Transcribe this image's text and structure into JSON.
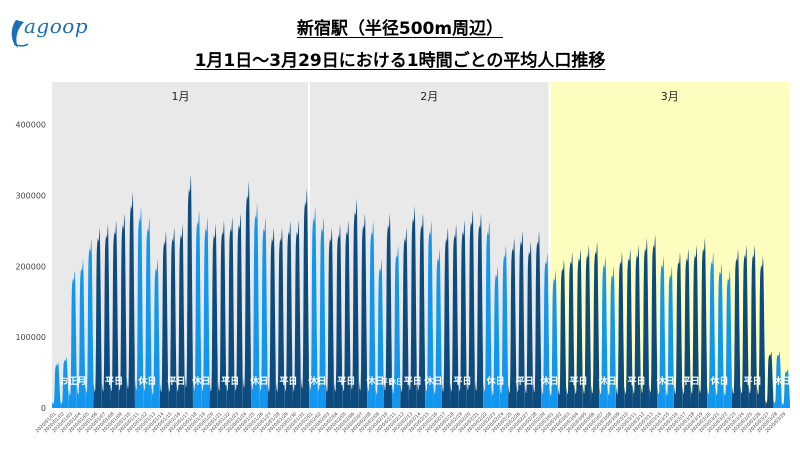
{
  "logo": {
    "text": "agoop",
    "accent_color": "#1a6fb6"
  },
  "header": {
    "title_line1": "新宿駅（半径500m周辺）",
    "title_line2": "1月1日〜3月29日における1時間ごとの平均人口推移"
  },
  "colors": {
    "weekday": "#0d4a7d",
    "holiday": "#1396ee",
    "panel_jan_feb": "#e9e9e9",
    "panel_mar": "#fdfdbf",
    "divider": "#ffffff"
  },
  "chart_data": {
    "type": "area",
    "title": "新宿駅（半径500m周辺） 1月1日〜3月29日における1時間ごとの平均人口推移",
    "xlabel": "",
    "ylabel": "",
    "ylim": [
      0,
      460000
    ],
    "yticks": [
      0,
      100000,
      200000,
      300000,
      400000
    ],
    "ytick_labels": [
      "0",
      "100000",
      "200000",
      "300000",
      "400000"
    ],
    "grid": false,
    "months": [
      "1月",
      "2月",
      "3月"
    ],
    "x": [
      "2020/01/01",
      "2020/01/02",
      "2020/01/03",
      "2020/01/04",
      "2020/01/05",
      "2020/01/06",
      "2020/01/07",
      "2020/01/08",
      "2020/01/09",
      "2020/01/10",
      "2020/01/11",
      "2020/01/12",
      "2020/01/13",
      "2020/01/14",
      "2020/01/15",
      "2020/01/16",
      "2020/01/17",
      "2020/01/18",
      "2020/01/19",
      "2020/01/20",
      "2020/01/21",
      "2020/01/22",
      "2020/01/23",
      "2020/01/24",
      "2020/01/25",
      "2020/01/26",
      "2020/01/27",
      "2020/01/28",
      "2020/01/29",
      "2020/01/30",
      "2020/01/31",
      "2020/02/01",
      "2020/02/02",
      "2020/02/03",
      "2020/02/04",
      "2020/02/05",
      "2020/02/06",
      "2020/02/07",
      "2020/02/08",
      "2020/02/09",
      "2020/02/10",
      "2020/02/11",
      "2020/02/12",
      "2020/02/13",
      "2020/02/14",
      "2020/02/15",
      "2020/02/16",
      "2020/02/17",
      "2020/02/18",
      "2020/02/19",
      "2020/02/20",
      "2020/02/21",
      "2020/02/22",
      "2020/02/23",
      "2020/02/24",
      "2020/02/25",
      "2020/02/26",
      "2020/02/27",
      "2020/02/28",
      "2020/02/29",
      "2020/03/01",
      "2020/03/02",
      "2020/03/03",
      "2020/03/04",
      "2020/03/05",
      "2020/03/06",
      "2020/03/07",
      "2020/03/08",
      "2020/03/09",
      "2020/03/10",
      "2020/03/11",
      "2020/03/12",
      "2020/03/13",
      "2020/03/14",
      "2020/03/15",
      "2020/03/16",
      "2020/03/17",
      "2020/03/18",
      "2020/03/19",
      "2020/03/20",
      "2020/03/21",
      "2020/03/22",
      "2020/03/23",
      "2020/03/24",
      "2020/03/25",
      "2020/03/26",
      "2020/03/27",
      "2020/03/28",
      "2020/03/29"
    ],
    "daily_peak": [
      65000,
      72000,
      195000,
      210000,
      240000,
      255000,
      260000,
      265000,
      275000,
      305000,
      285000,
      270000,
      210000,
      250000,
      255000,
      260000,
      330000,
      280000,
      270000,
      260000,
      265000,
      270000,
      275000,
      320000,
      290000,
      270000,
      255000,
      255000,
      265000,
      265000,
      310000,
      285000,
      270000,
      255000,
      260000,
      265000,
      295000,
      275000,
      265000,
      210000,
      275000,
      230000,
      255000,
      285000,
      275000,
      265000,
      225000,
      255000,
      260000,
      265000,
      280000,
      275000,
      265000,
      200000,
      230000,
      240000,
      250000,
      235000,
      250000,
      220000,
      195000,
      210000,
      220000,
      225000,
      230000,
      235000,
      215000,
      200000,
      220000,
      225000,
      230000,
      240000,
      245000,
      215000,
      200000,
      220000,
      225000,
      230000,
      240000,
      220000,
      205000,
      195000,
      225000,
      230000,
      230000,
      215000,
      80000,
      80000,
      55000
    ],
    "day_types": [
      "休日",
      "休日",
      "休日",
      "休日",
      "休日",
      "平日",
      "平日",
      "平日",
      "平日",
      "平日",
      "休日",
      "休日",
      "休日",
      "平日",
      "平日",
      "平日",
      "平日",
      "休日",
      "休日",
      "平日",
      "平日",
      "平日",
      "平日",
      "平日",
      "休日",
      "休日",
      "平日",
      "平日",
      "平日",
      "平日",
      "平日",
      "休日",
      "休日",
      "平日",
      "平日",
      "平日",
      "平日",
      "平日",
      "休日",
      "休日",
      "平日",
      "休日",
      "平日",
      "平日",
      "平日",
      "休日",
      "休日",
      "平日",
      "平日",
      "平日",
      "平日",
      "平日",
      "休日",
      "休日",
      "休日",
      "平日",
      "平日",
      "平日",
      "平日",
      "休日",
      "休日",
      "平日",
      "平日",
      "平日",
      "平日",
      "平日",
      "休日",
      "休日",
      "平日",
      "平日",
      "平日",
      "平日",
      "平日",
      "休日",
      "休日",
      "平日",
      "平日",
      "平日",
      "平日",
      "休日",
      "休日",
      "休日",
      "平日",
      "平日",
      "平日",
      "平日",
      "平日",
      "休日",
      "休日"
    ],
    "band_labels": [
      {
        "text": "お正月",
        "start_day": 0,
        "end_day": 4
      },
      {
        "text": "平日",
        "start_day": 5,
        "end_day": 9
      },
      {
        "text": "休日",
        "start_day": 10,
        "end_day": 12
      },
      {
        "text": "平日",
        "start_day": 13,
        "end_day": 16
      },
      {
        "text": "休日",
        "start_day": 17,
        "end_day": 18
      },
      {
        "text": "平日",
        "start_day": 19,
        "end_day": 23
      },
      {
        "text": "休日",
        "start_day": 24,
        "end_day": 25
      },
      {
        "text": "平日",
        "start_day": 26,
        "end_day": 30
      },
      {
        "text": "休日",
        "start_day": 31,
        "end_day": 32
      },
      {
        "text": "平日",
        "start_day": 33,
        "end_day": 37
      },
      {
        "text": "休日",
        "start_day": 38,
        "end_day": 39
      },
      {
        "text": "平日",
        "start_day": 40,
        "end_day": 40
      },
      {
        "text": "休日",
        "start_day": 41,
        "end_day": 41
      },
      {
        "text": "平日",
        "start_day": 42,
        "end_day": 44
      },
      {
        "text": "休日",
        "start_day": 45,
        "end_day": 46
      },
      {
        "text": "平日",
        "start_day": 47,
        "end_day": 51
      },
      {
        "text": "休日",
        "start_day": 52,
        "end_day": 54
      },
      {
        "text": "平日",
        "start_day": 55,
        "end_day": 58
      },
      {
        "text": "休日",
        "start_day": 59,
        "end_day": 60
      },
      {
        "text": "平日",
        "start_day": 61,
        "end_day": 65
      },
      {
        "text": "休日",
        "start_day": 66,
        "end_day": 67
      },
      {
        "text": "平日",
        "start_day": 68,
        "end_day": 72
      },
      {
        "text": "休日",
        "start_day": 73,
        "end_day": 74
      },
      {
        "text": "平日",
        "start_day": 75,
        "end_day": 78
      },
      {
        "text": "休日",
        "start_day": 79,
        "end_day": 81
      },
      {
        "text": "平日",
        "start_day": 82,
        "end_day": 86
      },
      {
        "text": "休日",
        "start_day": 87,
        "end_day": 88
      }
    ]
  }
}
